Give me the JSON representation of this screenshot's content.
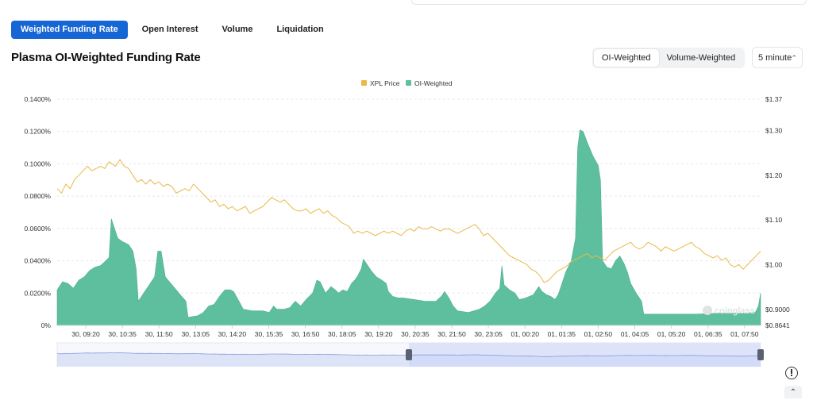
{
  "tabs": [
    {
      "label": "Weighted Funding Rate",
      "active": true
    },
    {
      "label": "Open Interest",
      "active": false
    },
    {
      "label": "Volume",
      "active": false
    },
    {
      "label": "Liquidation",
      "active": false
    }
  ],
  "title": "Plasma OI-Weighted Funding Rate",
  "weighting": {
    "options": [
      "OI-Weighted",
      "Volume-Weighted"
    ],
    "selected": "OI-Weighted"
  },
  "interval": {
    "selected": "5 minute"
  },
  "watermark": "coinglass",
  "icons": {
    "info": "clock-info-icon",
    "scroll_up": "chevron-up-icon",
    "interval_arrows": "up-down-chevron-icon"
  },
  "chart_data": {
    "type": "area",
    "legend": [
      "XPL Price",
      "OI-Weighted"
    ],
    "legend_placement": "top-center",
    "colors": {
      "price": "#e9b949",
      "funding": "#5dbf9d",
      "navigator": "#dde4fa"
    },
    "x_tick_labels": [
      "30, 09:20",
      "30, 10:35",
      "30, 11:50",
      "30, 13:05",
      "30, 14:20",
      "30, 15:35",
      "30, 16:50",
      "30, 18:05",
      "30, 19:20",
      "30, 20:35",
      "30, 21:50",
      "30, 23:05",
      "01, 00:20",
      "01, 01:35",
      "01, 02:50",
      "01, 04:05",
      "01, 05:20",
      "01, 06:35",
      "01, 07:50"
    ],
    "y_left": {
      "ticks": [
        "0.1400%",
        "0.1200%",
        "0.1000%",
        "0.0800%",
        "0.0600%",
        "0.0400%",
        "0.0200%",
        "0%"
      ],
      "range": [
        0,
        0.14
      ],
      "unit": "%"
    },
    "y_right": {
      "ticks": [
        "$1.37",
        "$1.30",
        "$1.20",
        "$1.10",
        "$1.00",
        "$0.9000",
        "$0.8641"
      ],
      "range": [
        0.8641,
        1.37
      ]
    },
    "grid": true,
    "x_range": [
      "30, 08:55",
      "01, 07:55"
    ],
    "series": [
      {
        "name": "OI-Weighted",
        "axis": "left",
        "points": [
          [
            0,
            0.022
          ],
          [
            0.5,
            0.027
          ],
          [
            1,
            0.026
          ],
          [
            1.5,
            0.023
          ],
          [
            2,
            0.028
          ],
          [
            2.5,
            0.03
          ],
          [
            3,
            0.034
          ],
          [
            3.5,
            0.036
          ],
          [
            4,
            0.037
          ],
          [
            4.5,
            0.04
          ],
          [
            4.8,
            0.042
          ],
          [
            5,
            0.066
          ],
          [
            5.3,
            0.06
          ],
          [
            5.6,
            0.054
          ],
          [
            6,
            0.052
          ],
          [
            6.6,
            0.05
          ],
          [
            7,
            0.046
          ],
          [
            7.3,
            0.035
          ],
          [
            7.5,
            0.015
          ],
          [
            8,
            0.02
          ],
          [
            8.5,
            0.025
          ],
          [
            9,
            0.03
          ],
          [
            9.3,
            0.046
          ],
          [
            9.6,
            0.046
          ],
          [
            10,
            0.03
          ],
          [
            10.5,
            0.026
          ],
          [
            11,
            0.022
          ],
          [
            11.5,
            0.018
          ],
          [
            11.9,
            0.015
          ],
          [
            12.1,
            0.005
          ],
          [
            13,
            0.006
          ],
          [
            13.5,
            0.008
          ],
          [
            14,
            0.012
          ],
          [
            14.5,
            0.013
          ],
          [
            15,
            0.018
          ],
          [
            15.5,
            0.022
          ],
          [
            16,
            0.022
          ],
          [
            16.3,
            0.021
          ],
          [
            16.8,
            0.015
          ],
          [
            17.2,
            0.01
          ],
          [
            18,
            0.009
          ],
          [
            19,
            0.009
          ],
          [
            19.6,
            0.008
          ],
          [
            20,
            0.012
          ],
          [
            20.3,
            0.01
          ],
          [
            21,
            0.01
          ],
          [
            21.5,
            0.011
          ],
          [
            22,
            0.015
          ],
          [
            22.5,
            0.012
          ],
          [
            23,
            0.016
          ],
          [
            23.3,
            0.018
          ],
          [
            23.6,
            0.02
          ],
          [
            24,
            0.028
          ],
          [
            24.3,
            0.027
          ],
          [
            24.8,
            0.02
          ],
          [
            25.3,
            0.024
          ],
          [
            25.7,
            0.022
          ],
          [
            26,
            0.02
          ],
          [
            26.4,
            0.022
          ],
          [
            26.8,
            0.021
          ],
          [
            27.2,
            0.026
          ],
          [
            27.5,
            0.028
          ],
          [
            27.8,
            0.031
          ],
          [
            28.1,
            0.035
          ],
          [
            28.3,
            0.041
          ],
          [
            28.6,
            0.038
          ],
          [
            29,
            0.034
          ],
          [
            29.5,
            0.03
          ],
          [
            30,
            0.028
          ],
          [
            30.4,
            0.026
          ],
          [
            30.6,
            0.021
          ],
          [
            31,
            0.018
          ],
          [
            31.5,
            0.017
          ],
          [
            32,
            0.017
          ],
          [
            33,
            0.016
          ],
          [
            34,
            0.015
          ],
          [
            35,
            0.015
          ],
          [
            35.5,
            0.018
          ],
          [
            35.8,
            0.021
          ],
          [
            36.2,
            0.017
          ],
          [
            36.6,
            0.012
          ],
          [
            37,
            0.009
          ],
          [
            38,
            0.008
          ],
          [
            38.5,
            0.009
          ],
          [
            39,
            0.01
          ],
          [
            39.5,
            0.012
          ],
          [
            40,
            0.015
          ],
          [
            40.5,
            0.02
          ],
          [
            40.9,
            0.023
          ],
          [
            41.1,
            0.037
          ],
          [
            41.3,
            0.025
          ],
          [
            41.8,
            0.022
          ],
          [
            42.3,
            0.02
          ],
          [
            42.7,
            0.016
          ],
          [
            43.3,
            0.017
          ],
          [
            44,
            0.019
          ],
          [
            44.5,
            0.024
          ],
          [
            44.8,
            0.021
          ],
          [
            45.2,
            0.019
          ],
          [
            45.6,
            0.018
          ],
          [
            46,
            0.016
          ],
          [
            46.3,
            0.019
          ],
          [
            46.6,
            0.025
          ],
          [
            47,
            0.033
          ],
          [
            47.5,
            0.04
          ],
          [
            47.9,
            0.054
          ],
          [
            48.1,
            0.11
          ],
          [
            48.3,
            0.121
          ],
          [
            48.6,
            0.12
          ],
          [
            49,
            0.113
          ],
          [
            49.5,
            0.105
          ],
          [
            50,
            0.099
          ],
          [
            50.2,
            0.09
          ],
          [
            50.4,
            0.04
          ],
          [
            50.8,
            0.036
          ],
          [
            51.2,
            0.035
          ],
          [
            51.6,
            0.04
          ],
          [
            52,
            0.043
          ],
          [
            52.4,
            0.038
          ],
          [
            52.7,
            0.033
          ],
          [
            53,
            0.026
          ],
          [
            53.5,
            0.02
          ],
          [
            54,
            0.015
          ],
          [
            54.2,
            0.007
          ],
          [
            55,
            0.007
          ],
          [
            57,
            0.007
          ],
          [
            59,
            0.007
          ],
          [
            61,
            0.0075
          ],
          [
            63,
            0.0075
          ],
          [
            64.5,
            0.008
          ],
          [
            64.8,
            0.012
          ],
          [
            65,
            0.02
          ]
        ]
      },
      {
        "name": "XPL Price",
        "axis": "right",
        "points": [
          [
            0,
            1.17
          ],
          [
            0.4,
            1.16
          ],
          [
            0.8,
            1.18
          ],
          [
            1.2,
            1.17
          ],
          [
            1.6,
            1.19
          ],
          [
            2,
            1.2
          ],
          [
            2.4,
            1.21
          ],
          [
            2.8,
            1.22
          ],
          [
            3.2,
            1.21
          ],
          [
            3.6,
            1.215
          ],
          [
            4,
            1.22
          ],
          [
            4.4,
            1.215
          ],
          [
            4.8,
            1.23
          ],
          [
            5.1,
            1.225
          ],
          [
            5.4,
            1.22
          ],
          [
            5.8,
            1.235
          ],
          [
            6.2,
            1.22
          ],
          [
            6.6,
            1.215
          ],
          [
            7,
            1.2
          ],
          [
            7.4,
            1.185
          ],
          [
            7.8,
            1.19
          ],
          [
            8.2,
            1.18
          ],
          [
            8.6,
            1.19
          ],
          [
            9,
            1.18
          ],
          [
            9.4,
            1.185
          ],
          [
            9.8,
            1.175
          ],
          [
            10.2,
            1.18
          ],
          [
            10.6,
            1.175
          ],
          [
            11,
            1.16
          ],
          [
            11.4,
            1.165
          ],
          [
            11.8,
            1.17
          ],
          [
            12.2,
            1.165
          ],
          [
            12.6,
            1.18
          ],
          [
            13,
            1.17
          ],
          [
            13.4,
            1.16
          ],
          [
            13.8,
            1.15
          ],
          [
            14.2,
            1.14
          ],
          [
            14.6,
            1.145
          ],
          [
            15,
            1.13
          ],
          [
            15.4,
            1.135
          ],
          [
            15.8,
            1.125
          ],
          [
            16.2,
            1.13
          ],
          [
            16.6,
            1.12
          ],
          [
            17,
            1.125
          ],
          [
            17.4,
            1.13
          ],
          [
            17.8,
            1.115
          ],
          [
            18.2,
            1.12
          ],
          [
            18.6,
            1.125
          ],
          [
            19,
            1.13
          ],
          [
            19.4,
            1.14
          ],
          [
            19.8,
            1.15
          ],
          [
            20.2,
            1.145
          ],
          [
            20.6,
            1.14
          ],
          [
            21,
            1.145
          ],
          [
            21.4,
            1.135
          ],
          [
            21.8,
            1.125
          ],
          [
            22.2,
            1.12
          ],
          [
            22.6,
            1.12
          ],
          [
            23,
            1.125
          ],
          [
            23.4,
            1.115
          ],
          [
            23.8,
            1.12
          ],
          [
            24.2,
            1.125
          ],
          [
            24.6,
            1.115
          ],
          [
            25,
            1.12
          ],
          [
            25.4,
            1.11
          ],
          [
            25.8,
            1.105
          ],
          [
            26.2,
            1.095
          ],
          [
            26.6,
            1.09
          ],
          [
            27,
            1.085
          ],
          [
            27.4,
            1.07
          ],
          [
            27.8,
            1.075
          ],
          [
            28.2,
            1.07
          ],
          [
            28.6,
            1.075
          ],
          [
            29,
            1.07
          ],
          [
            29.4,
            1.065
          ],
          [
            29.8,
            1.07
          ],
          [
            30.2,
            1.075
          ],
          [
            30.6,
            1.07
          ],
          [
            31,
            1.075
          ],
          [
            31.4,
            1.07
          ],
          [
            31.8,
            1.065
          ],
          [
            32.2,
            1.075
          ],
          [
            32.6,
            1.08
          ],
          [
            33,
            1.075
          ],
          [
            33.4,
            1.085
          ],
          [
            33.8,
            1.08
          ],
          [
            34.2,
            1.08
          ],
          [
            34.6,
            1.085
          ],
          [
            35,
            1.08
          ],
          [
            35.4,
            1.075
          ],
          [
            35.8,
            1.08
          ],
          [
            36.2,
            1.08
          ],
          [
            36.6,
            1.075
          ],
          [
            37,
            1.07
          ],
          [
            37.4,
            1.075
          ],
          [
            37.8,
            1.08
          ],
          [
            38.2,
            1.085
          ],
          [
            38.6,
            1.09
          ],
          [
            39,
            1.08
          ],
          [
            39.4,
            1.065
          ],
          [
            39.8,
            1.07
          ],
          [
            40.2,
            1.06
          ],
          [
            40.6,
            1.05
          ],
          [
            41,
            1.04
          ],
          [
            41.4,
            1.03
          ],
          [
            41.8,
            1.02
          ],
          [
            42.2,
            1.015
          ],
          [
            42.6,
            1.01
          ],
          [
            43,
            1.005
          ],
          [
            43.4,
            1.0
          ],
          [
            43.8,
            0.99
          ],
          [
            44.2,
            0.985
          ],
          [
            44.6,
            0.975
          ],
          [
            45,
            0.96
          ],
          [
            45.4,
            0.965
          ],
          [
            45.8,
            0.975
          ],
          [
            46.2,
            0.985
          ],
          [
            46.6,
            0.99
          ],
          [
            47,
            0.995
          ],
          [
            47.4,
            1.005
          ],
          [
            47.8,
            1.01
          ],
          [
            48.2,
            1.015
          ],
          [
            48.6,
            1.02
          ],
          [
            49,
            1.025
          ],
          [
            49.4,
            1.015
          ],
          [
            49.8,
            1.02
          ],
          [
            50.2,
            1.015
          ],
          [
            50.6,
            1.01
          ],
          [
            51,
            1.02
          ],
          [
            51.4,
            1.03
          ],
          [
            51.8,
            1.035
          ],
          [
            52.2,
            1.04
          ],
          [
            52.6,
            1.045
          ],
          [
            53,
            1.05
          ],
          [
            53.4,
            1.04
          ],
          [
            53.8,
            1.035
          ],
          [
            54.2,
            1.04
          ],
          [
            54.6,
            1.05
          ],
          [
            55,
            1.045
          ],
          [
            55.4,
            1.04
          ],
          [
            55.8,
            1.03
          ],
          [
            56.2,
            1.04
          ],
          [
            56.6,
            1.035
          ],
          [
            57,
            1.03
          ],
          [
            57.4,
            1.035
          ],
          [
            57.8,
            1.04
          ],
          [
            58.2,
            1.045
          ],
          [
            58.6,
            1.05
          ],
          [
            59,
            1.04
          ],
          [
            59.4,
            1.035
          ],
          [
            59.8,
            1.025
          ],
          [
            60.2,
            1.02
          ],
          [
            60.6,
            1.015
          ],
          [
            61,
            1.02
          ],
          [
            61.4,
            1.01
          ],
          [
            61.8,
            1.015
          ],
          [
            62.2,
            1.0
          ],
          [
            62.6,
            0.995
          ],
          [
            63,
            1.0
          ],
          [
            63.4,
            0.99
          ],
          [
            63.8,
            1.0
          ],
          [
            64.2,
            1.01
          ],
          [
            64.6,
            1.02
          ],
          [
            65,
            1.03
          ]
        ]
      }
    ],
    "navigator": {
      "series": "XPL Price",
      "selected_range_fraction": [
        0.5,
        1.0
      ]
    }
  }
}
